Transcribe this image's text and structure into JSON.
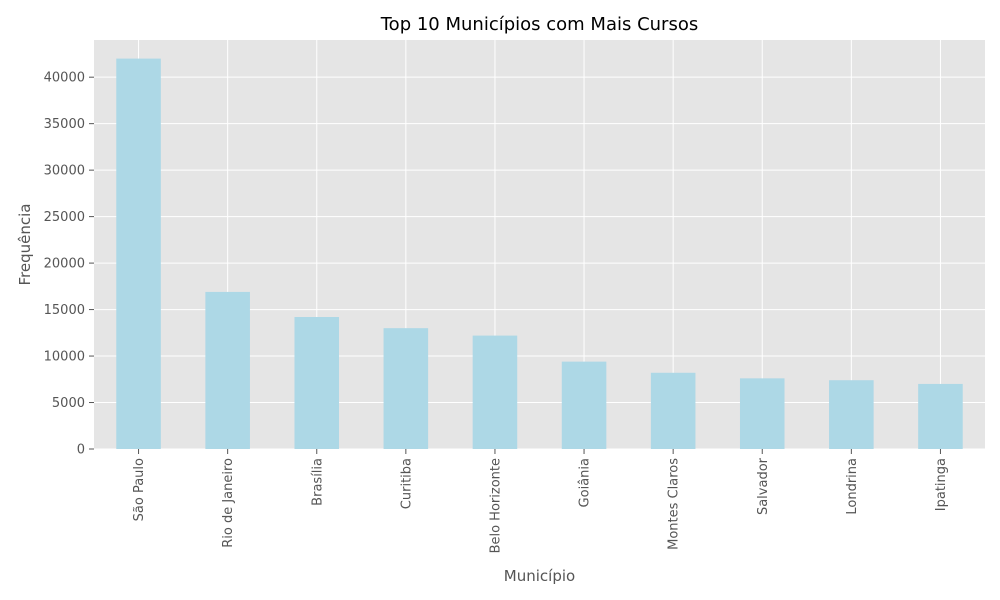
{
  "chart_data": {
    "type": "bar",
    "title": "Top 10 Municípios com Mais Cursos",
    "xlabel": "Município",
    "ylabel": "Frequência",
    "categories": [
      "São Paulo",
      "Rio de Janeiro",
      "Brasília",
      "Curitiba",
      "Belo Horizonte",
      "Goiânia",
      "Montes Claros",
      "Salvador",
      "Londrina",
      "Ipatinga"
    ],
    "values": [
      42000,
      16900,
      14200,
      13000,
      12200,
      9400,
      8200,
      7600,
      7400,
      7000
    ],
    "yticks": [
      0,
      5000,
      10000,
      15000,
      20000,
      25000,
      30000,
      35000,
      40000
    ],
    "ylim": [
      0,
      44000
    ],
    "grid": true,
    "colors": {
      "bar": "#add8e6",
      "background": "#e5e5e5",
      "grid": "#ffffff"
    }
  }
}
